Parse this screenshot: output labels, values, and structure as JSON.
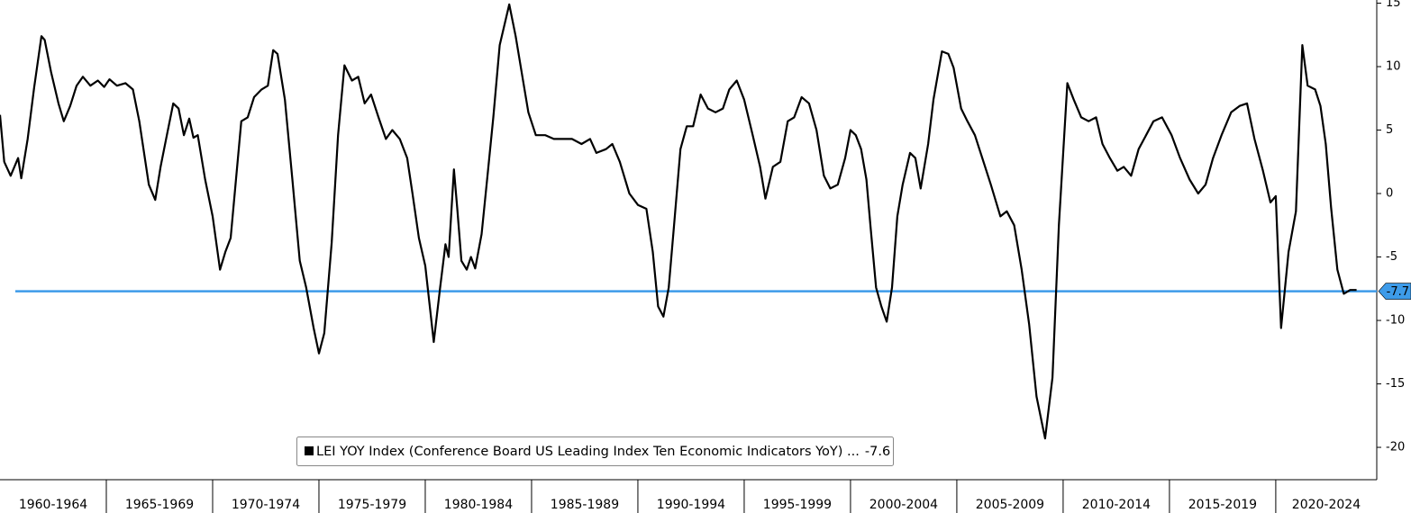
{
  "chart_data": {
    "type": "line",
    "x": [
      1960.0,
      1960.2,
      1960.5,
      1960.85,
      1961.0,
      1961.3,
      1961.6,
      1961.95,
      1962.1,
      1962.4,
      1962.75,
      1963.0,
      1963.3,
      1963.6,
      1963.9,
      1964.25,
      1964.6,
      1964.9,
      1965.15,
      1965.5,
      1965.9,
      1966.25,
      1966.55,
      1967.0,
      1967.3,
      1967.55,
      1967.85,
      1968.15,
      1968.4,
      1968.65,
      1968.9,
      1969.1,
      1969.3,
      1969.65,
      1970.0,
      1970.35,
      1970.6,
      1970.85,
      1971.1,
      1971.35,
      1971.65,
      1971.95,
      1972.3,
      1972.6,
      1972.85,
      1973.05,
      1973.4,
      1973.75,
      1974.1,
      1974.4,
      1974.75,
      1975.0,
      1975.25,
      1975.6,
      1975.9,
      1976.2,
      1976.55,
      1976.85,
      1977.15,
      1977.45,
      1977.8,
      1978.15,
      1978.45,
      1978.8,
      1979.15,
      1979.4,
      1979.7,
      1980.0,
      1980.4,
      1980.7,
      1980.95,
      1981.1,
      1981.35,
      1981.5,
      1981.7,
      1981.95,
      1982.15,
      1982.35,
      1982.65,
      1982.95,
      1983.2,
      1983.5,
      1983.95,
      1984.25,
      1984.6,
      1984.85,
      1985.2,
      1985.65,
      1986.05,
      1986.5,
      1986.9,
      1987.35,
      1987.75,
      1988.05,
      1988.5,
      1988.8,
      1989.15,
      1989.6,
      1990.0,
      1990.4,
      1990.7,
      1990.95,
      1991.2,
      1991.45,
      1991.7,
      1992.0,
      1992.3,
      1992.6,
      1992.95,
      1993.3,
      1993.65,
      1994.0,
      1994.3,
      1994.65,
      1995.0,
      1995.4,
      1995.75,
      1996.0,
      1996.35,
      1996.7,
      1997.05,
      1997.35,
      1997.7,
      1998.05,
      1998.4,
      1998.75,
      1999.05,
      1999.4,
      1999.75,
      2000.0,
      2000.25,
      2000.5,
      2000.75,
      2000.95,
      2001.2,
      2001.45,
      2001.7,
      2001.95,
      2002.2,
      2002.45,
      2002.8,
      2003.05,
      2003.3,
      2003.65,
      2003.9,
      2004.3,
      2004.6,
      2004.85,
      2005.2,
      2005.5,
      2005.85,
      2006.2,
      2006.6,
      2007.05,
      2007.35,
      2007.7,
      2008.05,
      2008.4,
      2008.75,
      2009.15,
      2009.5,
      2009.8,
      2010.2,
      2010.5,
      2010.85,
      2011.2,
      2011.55,
      2011.85,
      2012.2,
      2012.55,
      2012.85,
      2013.2,
      2013.55,
      2013.9,
      2014.25,
      2014.65,
      2015.1,
      2015.5,
      2015.95,
      2016.35,
      2016.7,
      2017.05,
      2017.45,
      2017.9,
      2018.3,
      2018.65,
      2019.0,
      2019.4,
      2019.75,
      2020.0,
      2020.25,
      2020.6,
      2020.95,
      2021.25,
      2021.5,
      2021.85,
      2022.1,
      2022.35,
      2022.6,
      2022.9,
      2023.2,
      2023.5,
      2023.8
    ],
    "series": [
      {
        "name": "LEI YOY Index (Conference Board US Leading Index Ten Economic Indicators YoY) ...",
        "color": "#000000",
        "values": [
          6.2,
          2.5,
          1.4,
          2.8,
          1.2,
          4.3,
          8.3,
          12.4,
          12.1,
          9.6,
          7.1,
          5.7,
          6.9,
          8.5,
          9.2,
          8.5,
          8.9,
          8.4,
          9.0,
          8.5,
          8.7,
          8.2,
          5.7,
          0.7,
          -0.5,
          2.1,
          4.6,
          7.1,
          6.7,
          4.6,
          5.9,
          4.4,
          4.6,
          1.1,
          -1.8,
          -6.0,
          -4.6,
          -3.5,
          1.1,
          5.7,
          6.0,
          7.6,
          8.2,
          8.5,
          11.3,
          11.0,
          7.4,
          1.1,
          -5.3,
          -7.4,
          -10.6,
          -12.6,
          -11.0,
          -3.9,
          4.6,
          10.1,
          8.9,
          9.2,
          7.1,
          7.8,
          6.0,
          4.3,
          5.0,
          4.3,
          2.8,
          0.0,
          -3.5,
          -5.7,
          -11.7,
          -7.4,
          -4.0,
          -5.0,
          1.9,
          -1.1,
          -5.3,
          -6.0,
          -5.0,
          -5.9,
          -3.2,
          1.8,
          6.0,
          11.7,
          14.9,
          12.4,
          8.9,
          6.4,
          4.6,
          4.6,
          4.3,
          4.3,
          4.3,
          3.9,
          4.3,
          3.2,
          3.5,
          3.9,
          2.5,
          0.0,
          -0.9,
          -1.2,
          -4.6,
          -8.9,
          -9.7,
          -7.4,
          -2.5,
          3.5,
          5.3,
          5.3,
          7.8,
          6.7,
          6.4,
          6.7,
          8.2,
          8.9,
          7.4,
          4.6,
          2.1,
          -0.4,
          2.1,
          2.5,
          5.7,
          6.0,
          7.6,
          7.1,
          5.0,
          1.4,
          0.4,
          0.7,
          2.8,
          5.0,
          4.6,
          3.5,
          1.1,
          -2.8,
          -7.4,
          -8.9,
          -10.1,
          -7.4,
          -1.8,
          0.7,
          3.2,
          2.8,
          0.4,
          3.9,
          7.4,
          11.2,
          11.0,
          9.9,
          6.7,
          5.7,
          4.6,
          2.8,
          0.7,
          -1.8,
          -1.4,
          -2.5,
          -6.0,
          -10.3,
          -16.0,
          -19.3,
          -14.5,
          -2.5,
          8.7,
          7.4,
          6.0,
          5.7,
          6.0,
          3.9,
          2.8,
          1.8,
          2.1,
          1.4,
          3.5,
          4.6,
          5.7,
          6.0,
          4.6,
          2.8,
          1.1,
          0.0,
          0.7,
          2.8,
          4.6,
          6.4,
          6.9,
          7.1,
          4.3,
          1.8,
          -0.7,
          -0.2,
          -10.6,
          -4.6,
          -1.4,
          11.7,
          8.5,
          8.2,
          6.9,
          3.9,
          -1.1,
          -6.0,
          -7.9,
          -7.6,
          -7.6
        ]
      }
    ],
    "reference_line": {
      "value": -7.7,
      "color": "#3d9be9"
    },
    "xlim": [
      1960,
      2024.75
    ],
    "xticks": [
      {
        "value": 1960,
        "label": "1960-1964"
      },
      {
        "value": 1965,
        "label": "1965-1969"
      },
      {
        "value": 1970,
        "label": "1970-1974"
      },
      {
        "value": 1975,
        "label": "1975-1979"
      },
      {
        "value": 1980,
        "label": "1980-1984"
      },
      {
        "value": 1985,
        "label": "1985-1989"
      },
      {
        "value": 1990,
        "label": "1990-1994"
      },
      {
        "value": 1995,
        "label": "1995-1999"
      },
      {
        "value": 2000,
        "label": "2000-2004"
      },
      {
        "value": 2005,
        "label": "2005-2009"
      },
      {
        "value": 2010,
        "label": "2010-2014"
      },
      {
        "value": 2015,
        "label": "2015-2019"
      },
      {
        "value": 2020,
        "label": "2020-2024"
      }
    ],
    "ylim": [
      -22.55,
      15.25
    ],
    "yticks": [
      15,
      10,
      5,
      0,
      -5,
      -10,
      -15,
      -20
    ]
  }
}
